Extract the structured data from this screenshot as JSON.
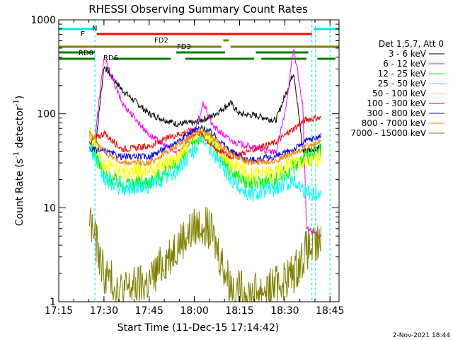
{
  "chart_data": {
    "type": "line",
    "title": "RHESSI Observing Summary Count Rates",
    "xlabel": "Start Time (11-Dec-15 17:14:42)",
    "ylabel_main": "Count Rate (s",
    "ylabel_sup1": "-1",
    "ylabel_mid": " detector",
    "ylabel_sup2": "-1",
    "ylabel_end": ")",
    "yscale": "log",
    "ylim": [
      1,
      1000
    ],
    "xlim_minutes": [
      17.25,
      18.8
    ],
    "x_ticks": [
      {
        "label": "17:15",
        "t": 17.25
      },
      {
        "label": "17:30",
        "t": 17.5
      },
      {
        "label": "17:45",
        "t": 17.75
      },
      {
        "label": "18:00",
        "t": 18.0
      },
      {
        "label": "18:15",
        "t": 18.25
      },
      {
        "label": "18:30",
        "t": 18.5
      },
      {
        "label": "18:45",
        "t": 18.75
      }
    ],
    "y_ticks": [
      {
        "label": "1",
        "v": 1
      },
      {
        "label": "10",
        "v": 10
      },
      {
        "label": "100",
        "v": 100
      },
      {
        "label": "1000",
        "v": 1000
      }
    ],
    "legend_header": "Det 1,5,7, Att 0",
    "series": [
      {
        "name": "3 - 6 keV",
        "color": "#000000",
        "key": [
          [
            17.45,
            40
          ],
          [
            17.5,
            320
          ],
          [
            17.6,
            180
          ],
          [
            17.75,
            100
          ],
          [
            17.9,
            78
          ],
          [
            18.0,
            80
          ],
          [
            18.1,
            95
          ],
          [
            18.2,
            130
          ],
          [
            18.25,
            100
          ],
          [
            18.35,
            95
          ],
          [
            18.45,
            85
          ],
          [
            18.55,
            280
          ],
          [
            18.6,
            40
          ],
          [
            18.65,
            42
          ],
          [
            18.7,
            45
          ]
        ]
      },
      {
        "name": "6 - 12 keV",
        "color": "#ff00ff",
        "key": [
          [
            17.45,
            55
          ],
          [
            17.5,
            400
          ],
          [
            17.6,
            130
          ],
          [
            17.75,
            60
          ],
          [
            17.9,
            38
          ],
          [
            18.0,
            60
          ],
          [
            18.05,
            130
          ],
          [
            18.1,
            75
          ],
          [
            18.2,
            52
          ],
          [
            18.3,
            45
          ],
          [
            18.45,
            38
          ],
          [
            18.5,
            100
          ],
          [
            18.55,
            500
          ],
          [
            18.6,
            120
          ],
          [
            18.62,
            6
          ],
          [
            18.7,
            5
          ]
        ]
      },
      {
        "name": "12 - 25 keV",
        "color": "#00ff00",
        "key": [
          [
            17.42,
            55
          ],
          [
            17.5,
            22
          ],
          [
            17.6,
            18
          ],
          [
            17.75,
            19
          ],
          [
            17.9,
            28
          ],
          [
            18.0,
            50
          ],
          [
            18.05,
            65
          ],
          [
            18.1,
            50
          ],
          [
            18.2,
            25
          ],
          [
            18.3,
            18
          ],
          [
            18.45,
            20
          ],
          [
            18.55,
            28
          ],
          [
            18.62,
            35
          ],
          [
            18.7,
            40
          ]
        ]
      },
      {
        "name": "25 - 50 keV",
        "color": "#00ffff",
        "key": [
          [
            17.42,
            48
          ],
          [
            17.5,
            20
          ],
          [
            17.6,
            16
          ],
          [
            17.75,
            17
          ],
          [
            17.9,
            24
          ],
          [
            18.0,
            42
          ],
          [
            18.05,
            55
          ],
          [
            18.1,
            40
          ],
          [
            18.2,
            20
          ],
          [
            18.3,
            14
          ],
          [
            18.45,
            16
          ],
          [
            18.55,
            20
          ],
          [
            18.62,
            15
          ],
          [
            18.7,
            14
          ]
        ]
      },
      {
        "name": "50 - 100 keV",
        "color": "#ffff00",
        "key": [
          [
            17.42,
            62
          ],
          [
            17.5,
            30
          ],
          [
            17.6,
            24
          ],
          [
            17.75,
            25
          ],
          [
            17.9,
            34
          ],
          [
            18.0,
            55
          ],
          [
            18.05,
            65
          ],
          [
            18.1,
            50
          ],
          [
            18.2,
            30
          ],
          [
            18.3,
            23
          ],
          [
            18.45,
            24
          ],
          [
            18.55,
            32
          ],
          [
            18.62,
            30
          ],
          [
            18.7,
            34
          ]
        ]
      },
      {
        "name": "100 - 300 keV",
        "color": "#ff0000",
        "key": [
          [
            17.42,
            50
          ],
          [
            17.5,
            62
          ],
          [
            17.6,
            42
          ],
          [
            17.75,
            45
          ],
          [
            17.9,
            60
          ],
          [
            18.0,
            68
          ],
          [
            18.05,
            58
          ],
          [
            18.1,
            45
          ],
          [
            18.2,
            35
          ],
          [
            18.3,
            40
          ],
          [
            18.45,
            50
          ],
          [
            18.55,
            70
          ],
          [
            18.62,
            88
          ],
          [
            18.7,
            90
          ]
        ]
      },
      {
        "name": "300 - 800 keV",
        "color": "#0000ff",
        "key": [
          [
            17.42,
            42
          ],
          [
            17.5,
            40
          ],
          [
            17.6,
            35
          ],
          [
            17.75,
            35
          ],
          [
            17.9,
            50
          ],
          [
            18.0,
            68
          ],
          [
            18.05,
            70
          ],
          [
            18.1,
            62
          ],
          [
            18.2,
            40
          ],
          [
            18.3,
            32
          ],
          [
            18.45,
            35
          ],
          [
            18.55,
            42
          ],
          [
            18.62,
            52
          ],
          [
            18.7,
            58
          ]
        ]
      },
      {
        "name": "800 - 7000 keV",
        "color": "#ff8000",
        "key": [
          [
            17.42,
            65
          ],
          [
            17.5,
            40
          ],
          [
            17.6,
            30
          ],
          [
            17.75,
            30
          ],
          [
            17.9,
            45
          ],
          [
            18.0,
            62
          ],
          [
            18.05,
            68
          ],
          [
            18.1,
            55
          ],
          [
            18.2,
            38
          ],
          [
            18.3,
            30
          ],
          [
            18.45,
            32
          ],
          [
            18.55,
            38
          ],
          [
            18.62,
            45
          ],
          [
            18.7,
            50
          ]
        ]
      },
      {
        "name": "7000 - 15000 keV",
        "color": "#808000",
        "key": [
          [
            17.42,
            8
          ],
          [
            17.5,
            2
          ],
          [
            17.6,
            1.3
          ],
          [
            17.75,
            1.6
          ],
          [
            17.9,
            4
          ],
          [
            18.0,
            6
          ],
          [
            18.05,
            7
          ],
          [
            18.1,
            5
          ],
          [
            18.2,
            1.5
          ],
          [
            18.3,
            1.2
          ],
          [
            18.45,
            1.5
          ],
          [
            18.55,
            2
          ],
          [
            18.62,
            3.5
          ],
          [
            18.7,
            4
          ]
        ]
      }
    ],
    "flag_labels": {
      "n": "N",
      "f": "F",
      "fd2": "FD2",
      "fd3": "FD3",
      "rd0": "RD0",
      "rd6": "RD6"
    },
    "flags": [
      {
        "label": "N",
        "color": "#00e5ee",
        "segments": [
          [
            17.25,
            17.45
          ],
          [
            18.66,
            18.8
          ]
        ]
      },
      {
        "label": "F",
        "color": "#ff0000",
        "segments": [
          [
            17.46,
            18.65
          ]
        ]
      },
      {
        "label": "FD2",
        "color": "#808000",
        "segments": [
          [
            18.16,
            18.19
          ]
        ]
      },
      {
        "label": "FD3",
        "color": "#808000",
        "segments": [
          [
            17.25,
            18.15
          ],
          [
            18.2,
            18.8
          ]
        ]
      },
      {
        "label": "RD0",
        "color": "#008000",
        "segments": [
          [
            17.25,
            17.45
          ],
          [
            17.9,
            18.17
          ],
          [
            18.34,
            18.63
          ]
        ]
      },
      {
        "label": "RD6",
        "color": "#008000",
        "segments": [
          [
            17.25,
            17.45
          ],
          [
            17.55,
            17.87
          ],
          [
            17.95,
            18.33
          ],
          [
            18.37,
            18.62
          ],
          [
            18.68,
            18.78
          ]
        ]
      }
    ],
    "night_lines": [
      17.45,
      18.65,
      18.67,
      18.75
    ]
  },
  "footer": {
    "timestamp": "2-Nov-2021 18:44"
  }
}
